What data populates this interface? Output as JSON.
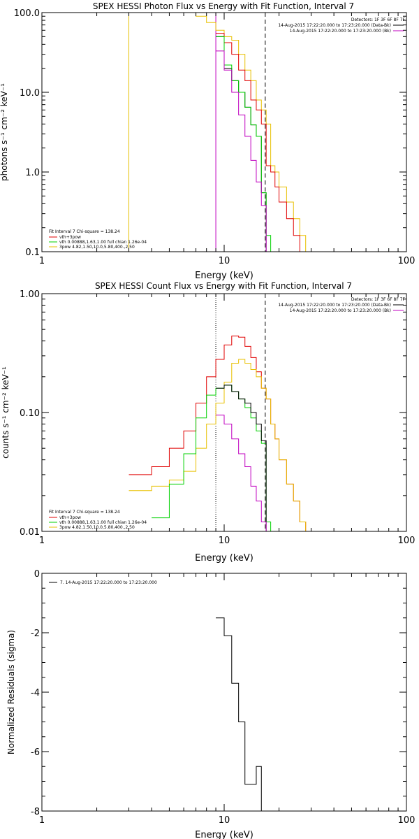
{
  "chart_data": [
    {
      "type": "line",
      "title": "SPEX HESSI Photon Flux vs Energy with Fit Function, Interval 7",
      "xlabel": "Energy (keV)",
      "ylabel": "photons s⁻¹ cm⁻² keV⁻¹",
      "xscale": "log",
      "yscale": "log",
      "xlim": [
        1,
        100
      ],
      "ylim": [
        0.1,
        100
      ],
      "x_ticks": [
        "1",
        "10",
        "100"
      ],
      "y_ticks": [
        "0.1",
        "1.0",
        "10.0",
        "100.0"
      ],
      "grid": false,
      "header": {
        "detectors": "Detectors: 1F 3F 6F 8F 7F",
        "data_line": "14-Aug-2015 17:22:20.000 to 17:23:20.000 (Data-Bk)",
        "bk_line": "14-Aug-2015 17:22:20.000 to 17:23:20.000 (Bk)"
      },
      "legend": {
        "placement": "bottom-left",
        "header": "Fit Interval  7    Chi-square = 138.24",
        "entries": [
          {
            "label": "vth+3pow",
            "color": "#e00000"
          },
          {
            "label": "vth 0.00888,1.63,1.00  full chian 1.26e-04",
            "color": "#00d000"
          },
          {
            "label": "3pow 4.82,1.50,10.0,5.80,400.,2.50",
            "color": "#e8c000"
          }
        ]
      },
      "vlines": [
        {
          "x": 3.0,
          "color": "#e8c000",
          "style": "solid"
        },
        {
          "x": 9.0,
          "color": "#c000c0",
          "style": "solid"
        },
        {
          "x": 16.8,
          "color": "#000000",
          "style": "dashed"
        }
      ],
      "series": [
        {
          "color": "#e8c000",
          "edges": [
            6,
            7,
            8,
            9,
            10,
            11,
            12,
            13,
            14,
            15,
            16,
            17,
            18,
            19,
            20,
            22,
            24,
            26,
            28
          ],
          "values": [
            100,
            90,
            75,
            60,
            50,
            45,
            30,
            19,
            14,
            8,
            6,
            4,
            1.2,
            1.0,
            0.65,
            0.42,
            0.26,
            0.16
          ]
        },
        {
          "color": "#e00000",
          "edges": [
            9,
            10,
            11,
            12,
            13,
            14,
            15,
            16,
            17,
            18,
            19,
            20,
            22,
            24,
            26,
            28
          ],
          "values": [
            55,
            42,
            30,
            19,
            14,
            8,
            6,
            4,
            1.2,
            1.0,
            0.65,
            0.42,
            0.26,
            0.16,
            0.1
          ]
        },
        {
          "color": "#000000",
          "edges": [
            9,
            10,
            11,
            12,
            13,
            14,
            15,
            16,
            17
          ],
          "values": [
            50,
            20,
            14,
            10,
            6.5,
            3.9,
            2.8,
            0.55
          ]
        },
        {
          "color": "#00d000",
          "edges": [
            9,
            10,
            11,
            12,
            13,
            14,
            15,
            16,
            17,
            18
          ],
          "values": [
            50,
            22,
            14,
            10,
            6.5,
            3.9,
            2.8,
            0.55,
            0.16
          ]
        },
        {
          "color": "#c000c0",
          "edges": [
            9,
            10,
            11,
            12,
            13,
            14,
            15,
            16,
            17
          ],
          "values": [
            33,
            19,
            10,
            5.2,
            2.8,
            1.4,
            0.75,
            0.38
          ]
        }
      ]
    },
    {
      "type": "line",
      "title": "SPEX HESSI Count Flux vs Energy with Fit Function, Interval 7",
      "xlabel": "Energy (keV)",
      "ylabel": "counts s⁻¹ cm⁻² keV⁻¹",
      "xscale": "log",
      "yscale": "log",
      "xlim": [
        1,
        100
      ],
      "ylim": [
        0.01,
        1.0
      ],
      "x_ticks": [
        "1",
        "10",
        "100"
      ],
      "y_ticks": [
        "0.01",
        "0.10",
        "1.00"
      ],
      "grid": false,
      "header": {
        "detectors": "Detectors: 1F 3F 6F 8F 7F",
        "data_line": "14-Aug-2015 17:22:20.000 to 17:23:20.000 (Data-Bk)",
        "bk_line": "14-Aug-2015 17:22:20.000 to 17:23:20.000 (Bk)"
      },
      "legend": {
        "placement": "bottom-left",
        "header": "Fit Interval  7    Chi-square = 138.24",
        "entries": [
          {
            "label": "vth+3pow",
            "color": "#e00000"
          },
          {
            "label": "vth 0.00888,1.63,1.00  full chian 1.26e-04",
            "color": "#00d000"
          },
          {
            "label": "3pow 4.82,1.50,10.0,5.80,400.,2.50",
            "color": "#e8c000"
          }
        ]
      },
      "vlines": [
        {
          "x": 9.0,
          "color": "#000000",
          "style": "dotted"
        },
        {
          "x": 16.8,
          "color": "#000000",
          "style": "dashed"
        }
      ],
      "series": [
        {
          "color": "#e00000",
          "edges": [
            3,
            4,
            5,
            6,
            7,
            8,
            9,
            10,
            11,
            12,
            13,
            14,
            15,
            16,
            17,
            18,
            19,
            20,
            22,
            24,
            26,
            28
          ],
          "values": [
            0.03,
            0.035,
            0.05,
            0.07,
            0.12,
            0.2,
            0.28,
            0.37,
            0.44,
            0.43,
            0.36,
            0.29,
            0.22,
            0.16,
            0.13,
            0.08,
            0.06,
            0.04,
            0.025,
            0.018,
            0.012
          ]
        },
        {
          "color": "#e8c000",
          "edges": [
            3,
            4,
            5,
            6,
            7,
            8,
            9,
            10,
            11,
            12,
            13,
            14,
            15,
            16,
            17,
            18,
            19,
            20,
            22,
            24,
            26,
            28,
            30
          ],
          "values": [
            0.022,
            0.024,
            0.027,
            0.032,
            0.05,
            0.08,
            0.12,
            0.18,
            0.26,
            0.28,
            0.26,
            0.23,
            0.2,
            0.16,
            0.13,
            0.08,
            0.06,
            0.04,
            0.025,
            0.018,
            0.012,
            0.01
          ]
        },
        {
          "color": "#00d000",
          "edges": [
            4,
            5,
            6,
            7,
            8,
            9,
            10,
            11,
            12,
            13,
            14,
            15,
            16,
            17,
            18
          ],
          "values": [
            0.013,
            0.025,
            0.045,
            0.09,
            0.14,
            0.16,
            0.17,
            0.15,
            0.13,
            0.11,
            0.09,
            0.07,
            0.055,
            0.012
          ]
        },
        {
          "color": "#000000",
          "edges": [
            9,
            10,
            11,
            12,
            13,
            14,
            15,
            16,
            17
          ],
          "values": [
            0.16,
            0.17,
            0.15,
            0.13,
            0.12,
            0.1,
            0.08,
            0.058
          ]
        },
        {
          "color": "#c000c0",
          "edges": [
            9,
            10,
            11,
            12,
            13,
            14,
            15,
            16,
            17
          ],
          "values": [
            0.095,
            0.08,
            0.06,
            0.045,
            0.035,
            0.024,
            0.018,
            0.012
          ]
        }
      ]
    },
    {
      "type": "line",
      "title": "",
      "xlabel": "Energy (keV)",
      "ylabel": "Normalized Residuals (sigma)",
      "xscale": "log",
      "yscale": "linear",
      "xlim": [
        1,
        100
      ],
      "ylim": [
        -8,
        0
      ],
      "x_ticks": [
        "1",
        "10",
        "100"
      ],
      "y_ticks": [
        "-8",
        "-6",
        "-4",
        "-2",
        "0"
      ],
      "grid": false,
      "legend": {
        "placement": "top-left",
        "entries": [
          {
            "label": "7. 14-Aug-2015 17:22:20.000 to 17:23:20.000",
            "color": "#000000"
          }
        ]
      },
      "series": [
        {
          "color": "#000000",
          "edges": [
            9,
            10,
            11,
            12,
            13,
            14,
            15,
            16,
            17
          ],
          "values": [
            -1.5,
            -2.1,
            -3.7,
            -5.0,
            -7.1,
            -7.1,
            -6.5,
            -8.0
          ]
        }
      ]
    }
  ]
}
